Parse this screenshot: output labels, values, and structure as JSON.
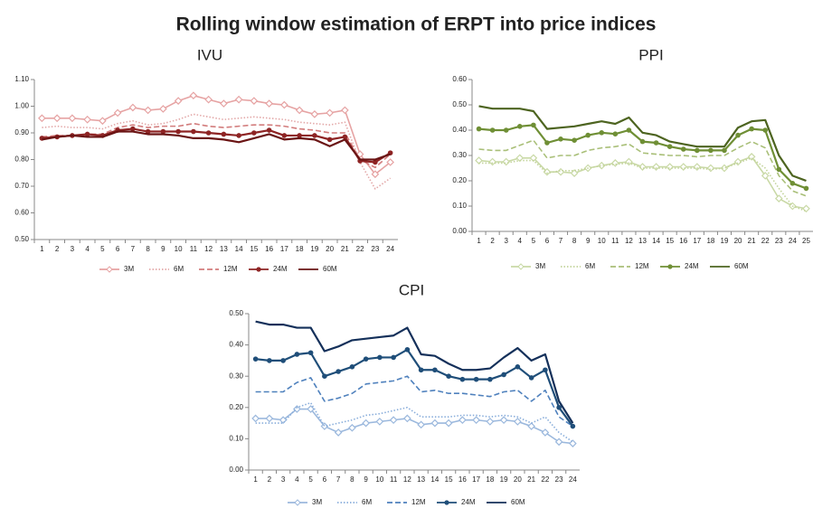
{
  "title": "Rolling window estimation of ERPT into price indices",
  "chart_data": [
    {
      "type": "line",
      "title": "IVU",
      "categories": [
        "1",
        "2",
        "3",
        "4",
        "5",
        "6",
        "7",
        "8",
        "9",
        "10",
        "11",
        "12",
        "13",
        "14",
        "15",
        "16",
        "17",
        "18",
        "19",
        "20",
        "21",
        "22",
        "23",
        "24"
      ],
      "ylim": [
        0.5,
        1.1
      ],
      "yticks": [
        {
          "value": 0.5,
          "label": "0.50"
        },
        {
          "value": 0.6,
          "label": "0.60"
        },
        {
          "value": 0.7,
          "label": "0.70"
        },
        {
          "value": 0.8,
          "label": "0.80"
        },
        {
          "value": 0.9,
          "label": "0.90"
        },
        {
          "value": 1.0,
          "label": "1.00"
        },
        {
          "value": 1.1,
          "label": "1.10"
        }
      ],
      "series": [
        {
          "name": "3M",
          "color": "#e6a3a3",
          "style": "solid",
          "marker": "diamond",
          "values": [
            0.955,
            0.955,
            0.955,
            0.95,
            0.945,
            0.975,
            0.995,
            0.985,
            0.99,
            1.02,
            1.04,
            1.025,
            1.01,
            1.025,
            1.02,
            1.01,
            1.005,
            0.985,
            0.97,
            0.975,
            0.985,
            0.82,
            0.745,
            0.79
          ]
        },
        {
          "name": "6M",
          "color": "#e3a8a8",
          "style": "dotted",
          "values": [
            0.92,
            0.925,
            0.92,
            0.92,
            0.915,
            0.935,
            0.945,
            0.93,
            0.935,
            0.95,
            0.97,
            0.96,
            0.95,
            0.955,
            0.96,
            0.955,
            0.95,
            0.94,
            0.935,
            0.93,
            0.94,
            0.79,
            0.69,
            0.73
          ]
        },
        {
          "name": "12M",
          "color": "#d27c7c",
          "style": "dashed",
          "values": [
            0.885,
            0.89,
            0.89,
            0.895,
            0.895,
            0.92,
            0.93,
            0.92,
            0.925,
            0.925,
            0.935,
            0.925,
            0.92,
            0.925,
            0.93,
            0.93,
            0.925,
            0.915,
            0.91,
            0.9,
            0.9,
            0.8,
            0.77,
            0.82
          ]
        },
        {
          "name": "24M",
          "color": "#8e2424",
          "style": "solid",
          "marker": "circle",
          "values": [
            0.88,
            0.885,
            0.89,
            0.895,
            0.89,
            0.91,
            0.915,
            0.905,
            0.905,
            0.905,
            0.905,
            0.9,
            0.895,
            0.89,
            0.9,
            0.91,
            0.89,
            0.89,
            0.89,
            0.875,
            0.885,
            0.795,
            0.79,
            0.825
          ]
        },
        {
          "name": "60M",
          "color": "#6a1414",
          "style": "solid",
          "values": [
            0.875,
            0.885,
            0.89,
            0.885,
            0.885,
            0.905,
            0.905,
            0.895,
            0.895,
            0.89,
            0.88,
            0.88,
            0.875,
            0.865,
            0.88,
            0.895,
            0.875,
            0.88,
            0.875,
            0.85,
            0.875,
            0.8,
            0.8,
            0.82
          ]
        }
      ]
    },
    {
      "type": "line",
      "title": "PPI",
      "categories": [
        "1",
        "2",
        "3",
        "4",
        "5",
        "6",
        "7",
        "8",
        "9",
        "10",
        "11",
        "12",
        "13",
        "14",
        "15",
        "16",
        "17",
        "18",
        "19",
        "20",
        "21",
        "22",
        "23",
        "24",
        "25"
      ],
      "ylim": [
        0,
        0.6
      ],
      "yticks": [
        {
          "value": 0,
          "label": "0.00"
        },
        {
          "value": 0.1,
          "label": "0.10"
        },
        {
          "value": 0.2,
          "label": "0.20"
        },
        {
          "value": 0.3,
          "label": "0.30"
        },
        {
          "value": 0.4,
          "label": "0.40"
        },
        {
          "value": 0.5,
          "label": "0.50"
        },
        {
          "value": 0.6,
          "label": "0.60"
        }
      ],
      "series": [
        {
          "name": "3M",
          "color": "#c9d9a6",
          "style": "solid",
          "marker": "diamond",
          "values": [
            0.28,
            0.275,
            0.275,
            0.29,
            0.29,
            0.235,
            0.235,
            0.23,
            0.25,
            0.26,
            0.27,
            0.275,
            0.255,
            0.255,
            0.255,
            0.255,
            0.255,
            0.25,
            0.25,
            0.275,
            0.295,
            0.22,
            0.13,
            0.1,
            0.09
          ]
        },
        {
          "name": "6M",
          "color": "#c3d49b",
          "style": "dotted",
          "values": [
            0.27,
            0.27,
            0.27,
            0.28,
            0.28,
            0.23,
            0.24,
            0.24,
            0.25,
            0.26,
            0.265,
            0.27,
            0.25,
            0.25,
            0.25,
            0.25,
            0.25,
            0.245,
            0.25,
            0.27,
            0.29,
            0.25,
            0.17,
            0.1,
            0.08
          ]
        },
        {
          "name": "12M",
          "color": "#a9bf78",
          "style": "dashed",
          "values": [
            0.325,
            0.32,
            0.32,
            0.34,
            0.36,
            0.29,
            0.3,
            0.3,
            0.32,
            0.33,
            0.335,
            0.345,
            0.31,
            0.305,
            0.3,
            0.3,
            0.295,
            0.3,
            0.3,
            0.33,
            0.355,
            0.33,
            0.22,
            0.16,
            0.14
          ]
        },
        {
          "name": "24M",
          "color": "#6f8f35",
          "style": "solid",
          "marker": "circle",
          "values": [
            0.405,
            0.4,
            0.4,
            0.415,
            0.42,
            0.35,
            0.365,
            0.36,
            0.38,
            0.39,
            0.385,
            0.4,
            0.355,
            0.35,
            0.335,
            0.325,
            0.32,
            0.32,
            0.32,
            0.38,
            0.405,
            0.4,
            0.245,
            0.19,
            0.17
          ]
        },
        {
          "name": "60M",
          "color": "#4d6420",
          "style": "solid",
          "values": [
            0.495,
            0.485,
            0.485,
            0.485,
            0.475,
            0.405,
            0.41,
            0.415,
            0.425,
            0.435,
            0.425,
            0.45,
            0.39,
            0.38,
            0.355,
            0.345,
            0.335,
            0.335,
            0.335,
            0.41,
            0.435,
            0.44,
            0.3,
            0.22,
            0.2
          ]
        }
      ]
    },
    {
      "type": "line",
      "title": "CPI",
      "categories": [
        "1",
        "2",
        "3",
        "4",
        "5",
        "6",
        "7",
        "8",
        "9",
        "10",
        "11",
        "12",
        "13",
        "14",
        "15",
        "16",
        "17",
        "18",
        "19",
        "20",
        "21",
        "22",
        "23",
        "24"
      ],
      "ylim": [
        0,
        0.5
      ],
      "yticks": [
        {
          "value": 0,
          "label": "0.00"
        },
        {
          "value": 0.1,
          "label": "0.10"
        },
        {
          "value": 0.2,
          "label": "0.20"
        },
        {
          "value": 0.3,
          "label": "0.30"
        },
        {
          "value": 0.4,
          "label": "0.40"
        },
        {
          "value": 0.5,
          "label": "0.50"
        }
      ],
      "series": [
        {
          "name": "3M",
          "color": "#9bb8dd",
          "style": "solid",
          "marker": "diamond",
          "values": [
            0.165,
            0.165,
            0.16,
            0.195,
            0.195,
            0.14,
            0.12,
            0.135,
            0.15,
            0.155,
            0.16,
            0.165,
            0.145,
            0.15,
            0.15,
            0.16,
            0.16,
            0.155,
            0.16,
            0.155,
            0.14,
            0.12,
            0.09,
            0.085
          ]
        },
        {
          "name": "6M",
          "color": "#8aaedb",
          "style": "dotted",
          "values": [
            0.15,
            0.15,
            0.15,
            0.2,
            0.215,
            0.14,
            0.15,
            0.16,
            0.175,
            0.18,
            0.19,
            0.2,
            0.17,
            0.17,
            0.17,
            0.175,
            0.175,
            0.17,
            0.175,
            0.17,
            0.15,
            0.17,
            0.12,
            0.09
          ]
        },
        {
          "name": "12M",
          "color": "#4f81bd",
          "style": "dashed",
          "values": [
            0.25,
            0.25,
            0.25,
            0.28,
            0.295,
            0.22,
            0.23,
            0.245,
            0.275,
            0.28,
            0.285,
            0.3,
            0.25,
            0.255,
            0.245,
            0.245,
            0.24,
            0.235,
            0.25,
            0.255,
            0.22,
            0.255,
            0.17,
            0.14
          ]
        },
        {
          "name": "24M",
          "color": "#1f4e79",
          "style": "solid",
          "marker": "circle",
          "values": [
            0.355,
            0.35,
            0.35,
            0.37,
            0.375,
            0.3,
            0.315,
            0.33,
            0.355,
            0.36,
            0.36,
            0.385,
            0.32,
            0.32,
            0.3,
            0.29,
            0.29,
            0.29,
            0.305,
            0.33,
            0.295,
            0.32,
            0.2,
            0.14
          ]
        },
        {
          "name": "60M",
          "color": "#14305a",
          "style": "solid",
          "values": [
            0.475,
            0.465,
            0.465,
            0.455,
            0.455,
            0.38,
            0.395,
            0.415,
            0.42,
            0.425,
            0.43,
            0.455,
            0.37,
            0.365,
            0.34,
            0.32,
            0.32,
            0.325,
            0.36,
            0.39,
            0.35,
            0.37,
            0.22,
            0.15
          ]
        }
      ]
    }
  ]
}
